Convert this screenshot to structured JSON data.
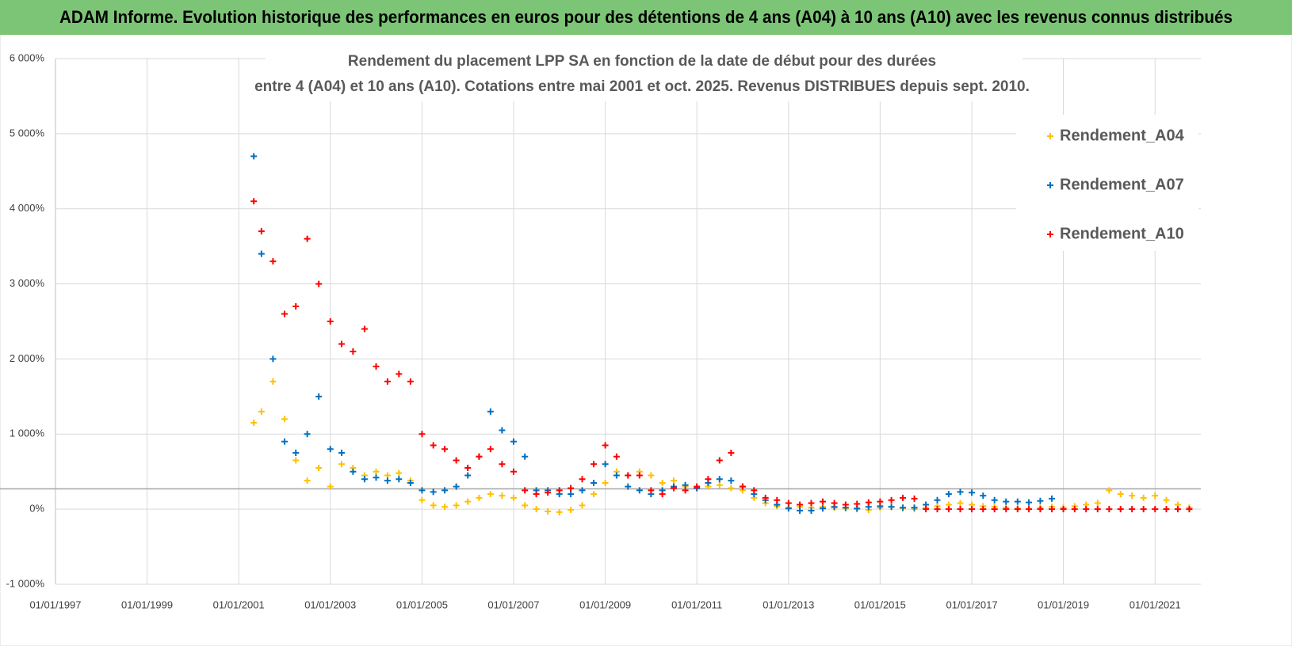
{
  "chart_data": {
    "type": "scatter",
    "title": "ADAM Informe. Evolution historique des performances en euros pour des détentions de 4 ans (A04) à 10 ans (A10) avec les revenus connus distribués",
    "subtitle": [
      "Rendement du placement LPP SA en fonction de la date de début pour des durées",
      "entre 4 (A04) et 10 ans (A10). Cotations entre mai 2001 et oct. 2025. Revenus DISTRIBUES depuis sept. 2010."
    ],
    "xlim": [
      "1997-01-01",
      "2022-01-01"
    ],
    "xticks": [
      {
        "value": "1997-01-01",
        "label": "01/01/1997"
      },
      {
        "value": "1999-01-01",
        "label": "01/01/1999"
      },
      {
        "value": "2001-01-01",
        "label": "01/01/2001"
      },
      {
        "value": "2003-01-01",
        "label": "01/01/2003"
      },
      {
        "value": "2005-01-01",
        "label": "01/01/2005"
      },
      {
        "value": "2007-01-01",
        "label": "01/01/2007"
      },
      {
        "value": "2009-01-01",
        "label": "01/01/2009"
      },
      {
        "value": "2011-01-01",
        "label": "01/01/2011"
      },
      {
        "value": "2013-01-01",
        "label": "01/01/2013"
      },
      {
        "value": "2015-01-01",
        "label": "01/01/2015"
      },
      {
        "value": "2017-01-01",
        "label": "01/01/2017"
      },
      {
        "value": "2019-01-01",
        "label": "01/01/2019"
      },
      {
        "value": "2021-01-01",
        "label": "01/01/2021"
      }
    ],
    "ylim": [
      -1000,
      6000
    ],
    "yticks": [
      {
        "value": -1000,
        "label": "-1 000%"
      },
      {
        "value": 0,
        "label": "0%"
      },
      {
        "value": 1000,
        "label": "1 000%"
      },
      {
        "value": 2000,
        "label": "2 000%"
      },
      {
        "value": 3000,
        "label": "3 000%"
      },
      {
        "value": 4000,
        "label": "4 000%"
      },
      {
        "value": 5000,
        "label": "5 000%"
      },
      {
        "value": 6000,
        "label": "6 000%"
      }
    ],
    "grid": true,
    "reference_line": 270,
    "legend": "right",
    "series": [
      {
        "name": "Rendement_A04",
        "color": "#ffc000",
        "x": [
          "2001-05-01",
          "2001-07-01",
          "2001-10-01",
          "2002-01-01",
          "2002-04-01",
          "2002-07-01",
          "2002-10-01",
          "2003-01-01",
          "2003-04-01",
          "2003-07-01",
          "2003-10-01",
          "2004-01-01",
          "2004-04-01",
          "2004-07-01",
          "2004-10-01",
          "2005-01-01",
          "2005-04-01",
          "2005-07-01",
          "2005-10-01",
          "2006-01-01",
          "2006-04-01",
          "2006-07-01",
          "2006-10-01",
          "2007-01-01",
          "2007-04-01",
          "2007-07-01",
          "2007-10-01",
          "2008-01-01",
          "2008-04-01",
          "2008-07-01",
          "2008-10-01",
          "2009-01-01",
          "2009-04-01",
          "2009-07-01",
          "2009-10-01",
          "2010-01-01",
          "2010-04-01",
          "2010-07-01",
          "2010-10-01",
          "2011-01-01",
          "2011-04-01",
          "2011-07-01",
          "2011-10-01",
          "2012-01-01",
          "2012-04-01",
          "2012-07-01",
          "2012-10-01",
          "2013-01-01",
          "2013-04-01",
          "2013-07-01",
          "2013-10-01",
          "2014-01-01",
          "2014-04-01",
          "2014-07-01",
          "2014-10-01",
          "2015-01-01",
          "2015-04-01",
          "2015-07-01",
          "2015-10-01",
          "2016-01-01",
          "2016-04-01",
          "2016-07-01",
          "2016-10-01",
          "2017-01-01",
          "2017-04-01",
          "2017-07-01",
          "2017-10-01",
          "2018-01-01",
          "2018-04-01",
          "2018-07-01",
          "2018-10-01",
          "2019-01-01",
          "2019-04-01",
          "2019-07-01",
          "2019-10-01",
          "2020-01-01",
          "2020-04-01",
          "2020-07-01",
          "2020-10-01",
          "2021-01-01",
          "2021-04-01",
          "2021-07-01",
          "2021-10-01"
        ],
        "values": [
          1150,
          1300,
          1700,
          1200,
          650,
          380,
          550,
          300,
          600,
          550,
          450,
          500,
          450,
          480,
          380,
          120,
          50,
          30,
          50,
          100,
          150,
          200,
          180,
          150,
          50,
          0,
          -30,
          -40,
          -10,
          50,
          200,
          350,
          500,
          450,
          500,
          450,
          350,
          380,
          300,
          280,
          300,
          320,
          280,
          250,
          150,
          80,
          40,
          20,
          30,
          20,
          30,
          20,
          10,
          0,
          -10,
          20,
          30,
          10,
          0,
          20,
          40,
          60,
          80,
          60,
          40,
          30,
          20,
          10,
          0,
          20,
          30,
          20,
          40,
          60,
          80,
          250,
          200,
          180,
          150,
          180,
          120,
          60,
          20
        ]
      },
      {
        "name": "Rendement_A07",
        "color": "#0070c0",
        "x": [
          "2001-05-01",
          "2001-07-01",
          "2001-10-01",
          "2002-01-01",
          "2002-04-01",
          "2002-07-01",
          "2002-10-01",
          "2003-01-01",
          "2003-04-01",
          "2003-07-01",
          "2003-10-01",
          "2004-01-01",
          "2004-04-01",
          "2004-07-01",
          "2004-10-01",
          "2005-01-01",
          "2005-04-01",
          "2005-07-01",
          "2005-10-01",
          "2006-01-01",
          "2006-04-01",
          "2006-07-01",
          "2006-10-01",
          "2007-01-01",
          "2007-04-01",
          "2007-07-01",
          "2007-10-01",
          "2008-01-01",
          "2008-04-01",
          "2008-07-01",
          "2008-10-01",
          "2009-01-01",
          "2009-04-01",
          "2009-07-01",
          "2009-10-01",
          "2010-01-01",
          "2010-04-01",
          "2010-07-01",
          "2010-10-01",
          "2011-01-01",
          "2011-04-01",
          "2011-07-01",
          "2011-10-01",
          "2012-01-01",
          "2012-04-01",
          "2012-07-01",
          "2012-10-01",
          "2013-01-01",
          "2013-04-01",
          "2013-07-01",
          "2013-10-01",
          "2014-01-01",
          "2014-04-01",
          "2014-07-01",
          "2014-10-01",
          "2015-01-01",
          "2015-04-01",
          "2015-07-01",
          "2015-10-01",
          "2016-01-01",
          "2016-04-01",
          "2016-07-01",
          "2016-10-01",
          "2017-01-01",
          "2017-04-01",
          "2017-07-01",
          "2017-10-01",
          "2018-01-01",
          "2018-04-01",
          "2018-07-01",
          "2018-10-01"
        ],
        "values": [
          4700,
          3400,
          2000,
          900,
          750,
          1000,
          1500,
          800,
          750,
          500,
          400,
          420,
          380,
          400,
          350,
          250,
          230,
          250,
          300,
          450,
          700,
          1300,
          1050,
          900,
          700,
          250,
          250,
          200,
          200,
          250,
          350,
          600,
          450,
          300,
          250,
          200,
          250,
          300,
          320,
          280,
          350,
          400,
          380,
          300,
          200,
          120,
          60,
          10,
          -20,
          -20,
          10,
          30,
          20,
          10,
          30,
          40,
          30,
          20,
          20,
          60,
          120,
          200,
          230,
          220,
          180,
          120,
          100,
          100,
          90,
          110,
          140
        ]
      },
      {
        "name": "Rendement_A10",
        "color": "#ff0000",
        "x": [
          "2001-05-01",
          "2001-07-01",
          "2001-10-01",
          "2002-01-01",
          "2002-04-01",
          "2002-07-01",
          "2002-10-01",
          "2003-01-01",
          "2003-04-01",
          "2003-07-01",
          "2003-10-01",
          "2004-01-01",
          "2004-04-01",
          "2004-07-01",
          "2004-10-01",
          "2005-01-01",
          "2005-04-01",
          "2005-07-01",
          "2005-10-01",
          "2006-01-01",
          "2006-04-01",
          "2006-07-01",
          "2006-10-01",
          "2007-01-01",
          "2007-04-01",
          "2007-07-01",
          "2007-10-01",
          "2008-01-01",
          "2008-04-01",
          "2008-07-01",
          "2008-10-01",
          "2009-01-01",
          "2009-04-01",
          "2009-07-01",
          "2009-10-01",
          "2010-01-01",
          "2010-04-01",
          "2010-07-01",
          "2010-10-01",
          "2011-01-01",
          "2011-04-01",
          "2011-07-01",
          "2011-10-01",
          "2012-01-01",
          "2012-04-01",
          "2012-07-01",
          "2012-10-01",
          "2013-01-01",
          "2013-04-01",
          "2013-07-01",
          "2013-10-01",
          "2014-01-01",
          "2014-04-01",
          "2014-07-01",
          "2014-10-01",
          "2015-01-01",
          "2015-04-01",
          "2015-07-01",
          "2015-10-01",
          "2016-01-01",
          "2016-04-01",
          "2016-07-01",
          "2016-10-01",
          "2017-01-01",
          "2017-04-01",
          "2017-07-01",
          "2017-10-01",
          "2018-01-01",
          "2018-04-01",
          "2018-07-01",
          "2018-10-01",
          "2019-01-01",
          "2019-04-01",
          "2019-07-01",
          "2019-10-01",
          "2020-01-01",
          "2020-04-01",
          "2020-07-01",
          "2020-10-01",
          "2021-01-01",
          "2021-04-01",
          "2021-07-01",
          "2021-10-01"
        ],
        "values": [
          4100,
          3700,
          3300,
          2600,
          2700,
          3600,
          3000,
          2500,
          2200,
          2100,
          2400,
          1900,
          1700,
          1800,
          1700,
          1000,
          850,
          800,
          650,
          550,
          700,
          800,
          600,
          500,
          250,
          200,
          220,
          250,
          280,
          400,
          600,
          850,
          700,
          450,
          450,
          250,
          200,
          280,
          250,
          300,
          400,
          650,
          750,
          300,
          250,
          150,
          120,
          80,
          60,
          80,
          100,
          80,
          60,
          70,
          90,
          100,
          120,
          150,
          140,
          0,
          0,
          0,
          0,
          0,
          0,
          0,
          0,
          0,
          0,
          0,
          0,
          0,
          0,
          0,
          0,
          0,
          0,
          0,
          0,
          0,
          0,
          0,
          0
        ]
      }
    ]
  }
}
